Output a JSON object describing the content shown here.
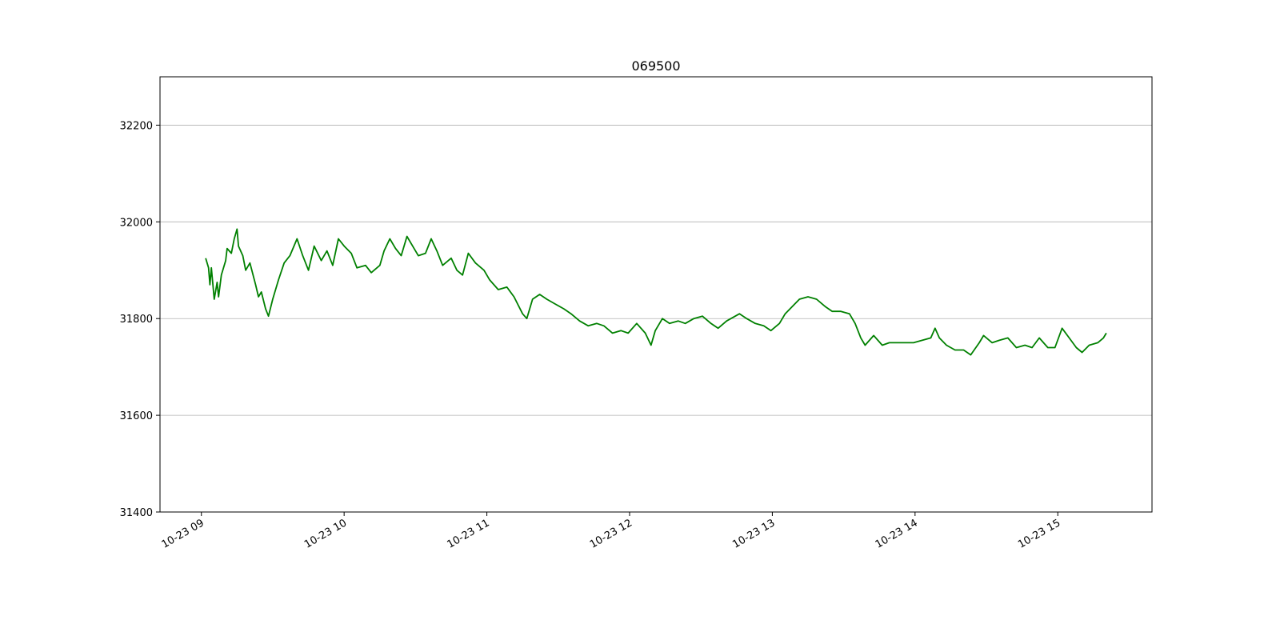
{
  "chart_data": {
    "type": "line",
    "title": "069500",
    "x": [
      9.03,
      9.05,
      9.06,
      9.07,
      9.09,
      9.11,
      9.12,
      9.14,
      9.17,
      9.18,
      9.21,
      9.23,
      9.25,
      9.26,
      9.29,
      9.31,
      9.34,
      9.38,
      9.4,
      9.42,
      9.45,
      9.47,
      9.5,
      9.54,
      9.58,
      9.62,
      9.67,
      9.71,
      9.75,
      9.79,
      9.84,
      9.88,
      9.92,
      9.96,
      10.0,
      10.05,
      10.09,
      10.15,
      10.19,
      10.25,
      10.28,
      10.32,
      10.36,
      10.4,
      10.44,
      10.48,
      10.52,
      10.57,
      10.61,
      10.65,
      10.69,
      10.75,
      10.79,
      10.83,
      10.87,
      10.92,
      10.98,
      11.02,
      11.08,
      11.14,
      11.19,
      11.25,
      11.28,
      11.32,
      11.37,
      11.42,
      11.48,
      11.54,
      11.59,
      11.65,
      11.71,
      11.77,
      11.82,
      11.88,
      11.94,
      11.99,
      12.05,
      12.11,
      12.15,
      12.18,
      12.23,
      12.28,
      12.34,
      12.39,
      12.45,
      12.51,
      12.57,
      12.62,
      12.68,
      12.77,
      12.82,
      12.88,
      12.94,
      12.99,
      13.05,
      13.09,
      13.14,
      13.19,
      13.25,
      13.31,
      13.37,
      13.42,
      13.48,
      13.54,
      13.58,
      13.62,
      13.65,
      13.71,
      13.77,
      13.82,
      13.88,
      13.94,
      13.99,
      14.05,
      14.11,
      14.14,
      14.17,
      14.22,
      14.28,
      14.34,
      14.39,
      14.45,
      14.48,
      14.54,
      14.59,
      14.65,
      14.71,
      14.77,
      14.82,
      14.87,
      14.93,
      14.98,
      15.03,
      15.08,
      15.13,
      15.17,
      15.22,
      15.28,
      15.32,
      15.34
    ],
    "series": [
      {
        "color": "#008000",
        "values": [
          31925,
          31905,
          31870,
          31905,
          31840,
          31875,
          31845,
          31890,
          31920,
          31945,
          31935,
          31965,
          31985,
          31950,
          31930,
          31900,
          31915,
          31870,
          31845,
          31855,
          31820,
          31805,
          31840,
          31880,
          31915,
          31930,
          31965,
          31930,
          31900,
          31950,
          31920,
          31940,
          31910,
          31965,
          31950,
          31935,
          31905,
          31910,
          31895,
          31910,
          31940,
          31965,
          31945,
          31930,
          31970,
          31950,
          31930,
          31935,
          31965,
          31940,
          31910,
          31925,
          31900,
          31890,
          31935,
          31915,
          31900,
          31880,
          31860,
          31865,
          31845,
          31810,
          31800,
          31840,
          31850,
          31840,
          31830,
          31820,
          31810,
          31795,
          31785,
          31790,
          31785,
          31770,
          31775,
          31770,
          31790,
          31770,
          31745,
          31775,
          31800,
          31790,
          31795,
          31790,
          31800,
          31805,
          31790,
          31780,
          31795,
          31810,
          31800,
          31790,
          31785,
          31775,
          31790,
          31810,
          31825,
          31840,
          31845,
          31840,
          31825,
          31815,
          31815,
          31810,
          31790,
          31760,
          31745,
          31765,
          31745,
          31750,
          31750,
          31750,
          31750,
          31755,
          31760,
          31780,
          31760,
          31745,
          31735,
          31735,
          31725,
          31750,
          31765,
          31750,
          31755,
          31760,
          31740,
          31745,
          31740,
          31760,
          31740,
          31740,
          31780,
          31760,
          31740,
          31730,
          31745,
          31750,
          31760,
          31770
        ]
      }
    ],
    "xlim": [
      8.71,
      15.66
    ],
    "xticks": [
      {
        "value": 9,
        "label": "10-23 09"
      },
      {
        "value": 10,
        "label": "10-23 10"
      },
      {
        "value": 11,
        "label": "10-23 11"
      },
      {
        "value": 12,
        "label": "10-23 12"
      },
      {
        "value": 13,
        "label": "10-23 13"
      },
      {
        "value": 14,
        "label": "10-23 14"
      },
      {
        "value": 15,
        "label": "10-23 15"
      }
    ],
    "ylim": [
      31400,
      32300
    ],
    "yticks": [
      31400,
      31600,
      31800,
      32000,
      32200
    ],
    "grid": "y"
  }
}
